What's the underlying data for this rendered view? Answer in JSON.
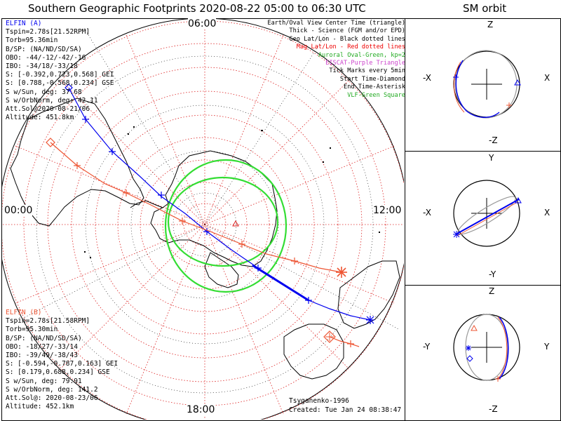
{
  "title": "Southern Geographic Footprints 2020-08-22 05:00 to 06:30 UTC",
  "orbit_title": "SM orbit",
  "clock": {
    "top": "06:00",
    "left": "00:00",
    "right": "12:00",
    "bottom": "18:00"
  },
  "elfin_a": {
    "name": "ELFIN (A)",
    "lines": [
      "Tspin=2.78s[21.52RPM]",
      "Torb=95.36min",
      "B/SP: (NA/ND/SD/SA)",
      "OBO: -44/-12/-42/-16",
      "IBO: -34/18/-33/18",
      "S: [-0.392,0.723,0.568] GEI",
      "S: [0.788,-0.568,0.234] GSE",
      "S w/Sun, deg: 37.68",
      "S w/OrbNorm, deg: 42.11",
      "Att.Sol@2020-08-21/06",
      "Altitude: 451.8km"
    ],
    "color": "#0000ee"
  },
  "elfin_b": {
    "name": "ELFIN (B)",
    "lines": [
      "Tspin=2.78s[21.58RPM]",
      "Torb=95.30min",
      "B/SP: (NA/ND/SD/SA)",
      "OBO: -18/27/-33/14",
      "IBO: -39/49/-38/43",
      "S: [-0.594,-0.787,0.163] GEI",
      "S: [0.179,0.688,0.234] GSE",
      "S w/Sun, deg: 79.91",
      "S w/OrbNorm, deg: 141.2",
      "Att.Sol@: 2020-08-23/06",
      "Altitude: 452.1km"
    ],
    "color": "#ee5533"
  },
  "legend": [
    {
      "text": "Earth/Oval View Center Time (triangle)",
      "color": "#000000"
    },
    {
      "text": "Thick - Science (FGM and/or EPD)",
      "color": "#000000"
    },
    {
      "text": "Geo Lat/Lon - Black dotted lines",
      "color": "#000000"
    },
    {
      "text": "Mag Lat/Lon - Red dotted lines",
      "color": "#ee0000"
    },
    {
      "text": "Auroral Oval-Green, kp=2",
      "color": "#22aa22"
    },
    {
      "text": "EISCAT-Purple Triangle",
      "color": "#cc44cc"
    },
    {
      "text": "Tick Marks every 5min",
      "color": "#000000"
    },
    {
      "text": "Start Time-Diamond",
      "color": "#000000"
    },
    {
      "text": "End Time-Asterisk",
      "color": "#000000"
    },
    {
      "text": "VLF-Green Square",
      "color": "#22aa22"
    }
  ],
  "credit": "Tsyganenko-1996",
  "created": "Created: Tue Jan 24 08:38:47 2023",
  "orbit_panels": [
    {
      "top": "Z",
      "bottom": "-Z",
      "left": "-X",
      "right": "X"
    },
    {
      "top": "Y",
      "bottom": "-Y",
      "left": "-X",
      "right": "X"
    },
    {
      "top": "Z",
      "bottom": "-Z",
      "left": "-Y",
      "right": "Y"
    }
  ],
  "colors": {
    "geo_grid": "#000000",
    "mag_grid": "#dd2222",
    "oval": "#33dd33",
    "track_a": "#0000ee",
    "track_b": "#ee5533",
    "orbit_gray": "#999999"
  }
}
